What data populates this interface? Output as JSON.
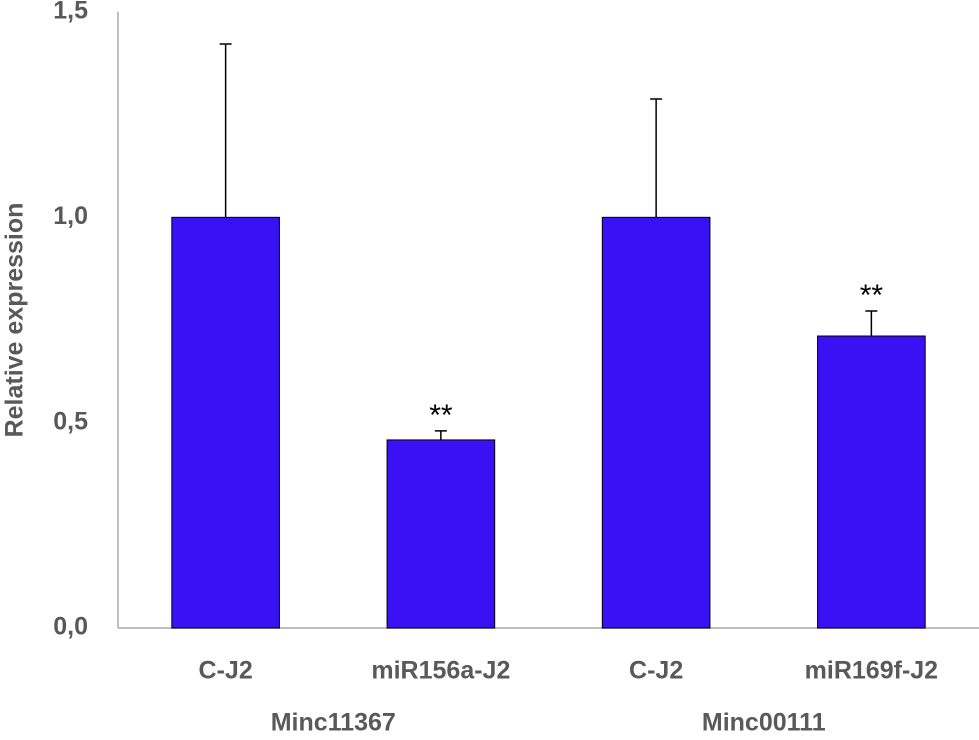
{
  "chart_data": {
    "type": "bar",
    "y_label": "Relative expression",
    "categories": [
      "C-J2",
      "miR156a-J2",
      "C-J2",
      "miR169f-J2"
    ],
    "groups": [
      "Minc11367",
      "Minc00111"
    ],
    "series": [
      {
        "color": "#3a10f5",
        "values": [
          1.0,
          0.458,
          1.0,
          0.711
        ],
        "errors": [
          0.422,
          0.022,
          0.288,
          0.061
        ],
        "annotations": [
          null,
          "**",
          null,
          "**"
        ]
      }
    ],
    "ylim": [
      0,
      1.5
    ],
    "yticks": [
      {
        "value": 0,
        "label": "0,0"
      },
      {
        "value": 0.5,
        "label": "0,5"
      },
      {
        "value": 1.0,
        "label": "1,0"
      },
      {
        "value": 1.5,
        "label": "1,5"
      }
    ]
  }
}
